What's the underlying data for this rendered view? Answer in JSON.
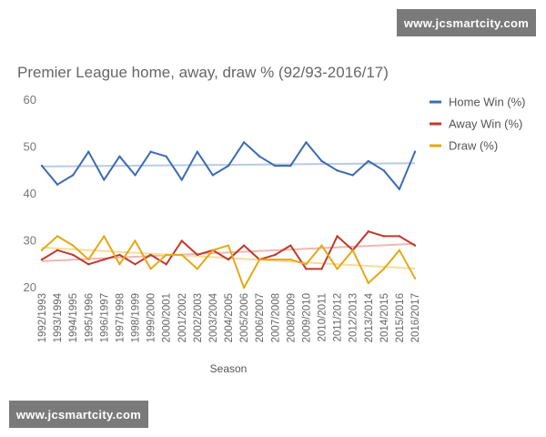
{
  "watermark": {
    "text": "www.jcsmartcity.com"
  },
  "chart_data": {
    "type": "line",
    "title": "Premier League home, away, draw % (92/93-2016/17)",
    "xlabel": "Season",
    "ylabel": "",
    "ylim": [
      20,
      60
    ],
    "yticks": [
      20,
      30,
      40,
      50,
      60
    ],
    "grid": false,
    "legend_position": "right",
    "categories": [
      "1992/1993",
      "1993/1994",
      "1994/1995",
      "1995/1996",
      "1996/1997",
      "1997/1998",
      "1998/1999",
      "1999/2000",
      "2000/2001",
      "2001/2002",
      "2002/2003",
      "2003/2004",
      "2004/2005",
      "2005/2006",
      "2006/2007",
      "2007/2008",
      "2008/2009",
      "2009/2010",
      "2010/2011",
      "2011/2012",
      "2012/2013",
      "2013/2014",
      "2014/2015",
      "2015/2016",
      "2016/2017"
    ],
    "series": [
      {
        "name": "Home Win (%)",
        "color": "#3c6bb0",
        "trend_color": "#b8cbe4",
        "values": [
          46,
          42,
          44,
          49,
          43,
          48,
          44,
          49,
          48,
          43,
          49,
          44,
          46,
          51,
          48,
          46,
          46,
          51,
          47,
          45,
          44,
          47,
          45,
          41,
          49
        ]
      },
      {
        "name": "Away Win (%)",
        "color": "#c0392b",
        "trend_color": "#f0b8b0",
        "values": [
          26,
          28,
          27,
          25,
          26,
          27,
          25,
          27,
          25,
          30,
          27,
          28,
          26,
          29,
          26,
          27,
          29,
          24,
          24,
          31,
          28,
          32,
          31,
          31,
          29
        ]
      },
      {
        "name": "Draw (%)",
        "color": "#e6a817",
        "trend_color": "#f6dd9a",
        "values": [
          28,
          31,
          29,
          26,
          31,
          25,
          30,
          24,
          27,
          27,
          24,
          28,
          29,
          20,
          26,
          26,
          26,
          25,
          29,
          24,
          28,
          21,
          24,
          28,
          22
        ]
      }
    ]
  }
}
